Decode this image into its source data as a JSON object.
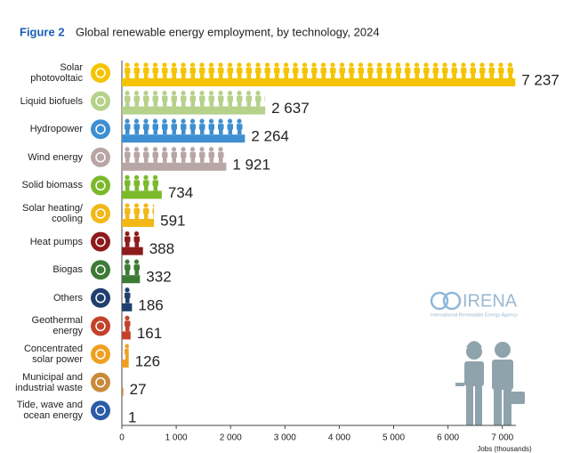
{
  "chart_data": {
    "type": "bar",
    "orientation": "horizontal",
    "figure_label": "Figure 2",
    "title": "Global renewable energy employment, by technology, 2024",
    "categories": [
      "Solar\nphotovoltaic",
      "Liquid biofuels",
      "Hydropower",
      "Wind energy",
      "Solid biomass",
      "Solar heating/\ncooling",
      "Heat pumps",
      "Biogas",
      "Others",
      "Geothermal\nenergy",
      "Concentrated\nsolar power",
      "Municipal and\nindustrial waste",
      "Tide, wave and\nocean energy"
    ],
    "values": [
      7237,
      2637,
      2264,
      1921,
      734,
      591,
      388,
      332,
      186,
      161,
      126,
      27,
      1
    ],
    "value_labels": [
      "7 237",
      "2 637",
      "2 264",
      "1 921",
      "734",
      "591",
      "388",
      "332",
      "186",
      "161",
      "126",
      "27",
      "1"
    ],
    "colors": [
      "#f5c400",
      "#b5d18a",
      "#3d8fd1",
      "#b8a5a5",
      "#7ab929",
      "#f2b817",
      "#8e1b1b",
      "#3d7a35",
      "#1f3f6e",
      "#c4422a",
      "#f0a020",
      "#c98a3a",
      "#2a5ca8"
    ],
    "xlim": [
      0,
      7250
    ],
    "xticks": [
      0,
      {
        "value": 1000,
        "label": "1 000"
      },
      {
        "value": 2000,
        "label": "2 000"
      },
      {
        "value": 3000,
        "label": "3 000"
      },
      {
        "value": 4000,
        "label": "4 000"
      },
      {
        "value": 5000,
        "label": "5 000"
      },
      {
        "value": 6000,
        "label": "6 000"
      },
      {
        "value": 7000,
        "label": "7 000"
      }
    ],
    "xlabel": "Jobs (thousands)"
  },
  "logo": {
    "name": "IRENA",
    "tagline": "International Renewable Energy Agency"
  }
}
